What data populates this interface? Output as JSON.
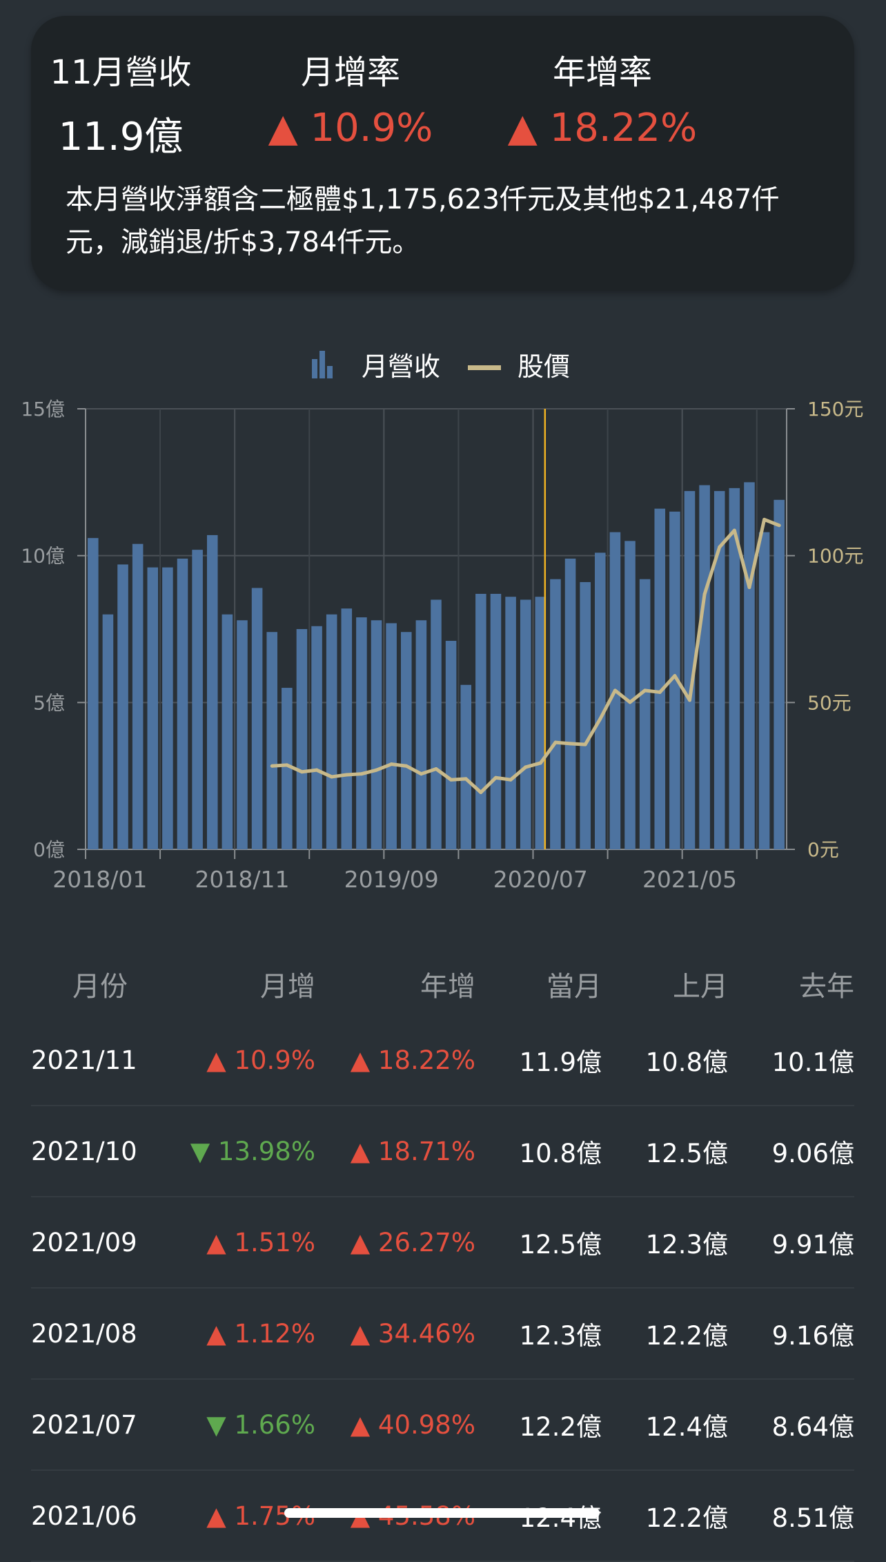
{
  "summary": {
    "month_label": "11月營收",
    "month_value": "11.9億",
    "mom_label": "月增率",
    "mom_value": "▲ 10.9%",
    "yoy_label": "年增率",
    "yoy_value": "▲ 18.22%",
    "description": "本月營收淨額含二極體$1,175,623仟元及其他$21,487仟元，減銷退/折$3,784仟元。"
  },
  "colors": {
    "bg": "#293036",
    "card": "#1e2326",
    "bar": "#4d73a0",
    "price": "#c8b98a",
    "marker": "#f0b323",
    "up": "#e5503f",
    "down": "#5fa94f"
  },
  "chart_data": {
    "type": "bar+line",
    "legend": {
      "position": "top",
      "items": [
        {
          "name": "月營收",
          "icon": "bar-chart-icon"
        },
        {
          "name": "股價",
          "icon": "line-icon"
        }
      ]
    },
    "categories": [
      "2018/01",
      "2018/02",
      "2018/03",
      "2018/04",
      "2018/05",
      "2018/06",
      "2018/07",
      "2018/08",
      "2018/09",
      "2018/10",
      "2018/11",
      "2018/12",
      "2019/01",
      "2019/02",
      "2019/03",
      "2019/04",
      "2019/05",
      "2019/06",
      "2019/07",
      "2019/08",
      "2019/09",
      "2019/10",
      "2019/11",
      "2019/12",
      "2020/01",
      "2020/02",
      "2020/03",
      "2020/04",
      "2020/05",
      "2020/06",
      "2020/07",
      "2020/08",
      "2020/09",
      "2020/10",
      "2020/11",
      "2020/12",
      "2021/01",
      "2021/02",
      "2021/03",
      "2021/04",
      "2021/05",
      "2021/06",
      "2021/07",
      "2021/08",
      "2021/09",
      "2021/10",
      "2021/11"
    ],
    "x_tick_labels": [
      "2018/01",
      "2018/11",
      "2019/09",
      "2020/07",
      "2021/05"
    ],
    "y_left": {
      "ticks": [
        "0億",
        "5億",
        "10億",
        "15億"
      ],
      "range": [
        0,
        15
      ],
      "unit": "億"
    },
    "y_right": {
      "ticks": [
        "0元",
        "50元",
        "100元",
        "150元"
      ],
      "range": [
        0,
        150
      ],
      "unit": "元"
    },
    "marker_at": "2020/07",
    "grid": true,
    "series": [
      {
        "name": "月營收",
        "type": "bar",
        "values": [
          10.6,
          8.0,
          9.7,
          10.4,
          9.6,
          9.6,
          9.9,
          10.2,
          10.7,
          8.0,
          7.8,
          8.9,
          7.4,
          5.5,
          7.5,
          7.6,
          8.0,
          8.2,
          7.9,
          7.8,
          7.7,
          7.4,
          7.8,
          8.5,
          7.1,
          5.6,
          8.7,
          8.7,
          8.6,
          8.5,
          8.6,
          9.2,
          9.9,
          9.1,
          10.1,
          10.8,
          10.5,
          9.2,
          11.6,
          11.5,
          12.2,
          12.4,
          12.2,
          12.3,
          12.5,
          10.8,
          11.9
        ]
      },
      {
        "name": "股價",
        "type": "line",
        "values": [
          null,
          null,
          null,
          null,
          null,
          null,
          null,
          null,
          null,
          null,
          null,
          null,
          28.4,
          28.7,
          26.4,
          27,
          24.7,
          25.4,
          25.7,
          27,
          29,
          28.4,
          25.7,
          27.4,
          23.7,
          24,
          19.4,
          24.4,
          23.7,
          28,
          29.4,
          36.4,
          36,
          35.7,
          44.4,
          54.1,
          50.1,
          54.1,
          53.5,
          59.1,
          50.8,
          86.9,
          102.9,
          108.6,
          89.2,
          112.3,
          110.3
        ]
      }
    ]
  },
  "table": {
    "headers": [
      "月份",
      "月增",
      "年增",
      "當月",
      "上月",
      "去年"
    ],
    "rows": [
      {
        "month": "2021/11",
        "mom": "▲ 10.9%",
        "mom_dir": "up",
        "yoy": "▲ 18.22%",
        "yoy_dir": "up",
        "cur": "11.9億",
        "prev": "10.8億",
        "last_year": "10.1億"
      },
      {
        "month": "2021/10",
        "mom": "▼ 13.98%",
        "mom_dir": "down",
        "yoy": "▲ 18.71%",
        "yoy_dir": "up",
        "cur": "10.8億",
        "prev": "12.5億",
        "last_year": "9.06億"
      },
      {
        "month": "2021/09",
        "mom": "▲ 1.51%",
        "mom_dir": "up",
        "yoy": "▲ 26.27%",
        "yoy_dir": "up",
        "cur": "12.5億",
        "prev": "12.3億",
        "last_year": "9.91億"
      },
      {
        "month": "2021/08",
        "mom": "▲ 1.12%",
        "mom_dir": "up",
        "yoy": "▲ 34.46%",
        "yoy_dir": "up",
        "cur": "12.3億",
        "prev": "12.2億",
        "last_year": "9.16億"
      },
      {
        "month": "2021/07",
        "mom": "▼ 1.66%",
        "mom_dir": "down",
        "yoy": "▲ 40.98%",
        "yoy_dir": "up",
        "cur": "12.2億",
        "prev": "12.4億",
        "last_year": "8.64億"
      },
      {
        "month": "2021/06",
        "mom": "▲ 1.75%",
        "mom_dir": "up",
        "yoy": "▲ 45.58%",
        "yoy_dir": "up",
        "cur": "12.4億",
        "prev": "12.2億",
        "last_year": "8.51億"
      }
    ]
  }
}
